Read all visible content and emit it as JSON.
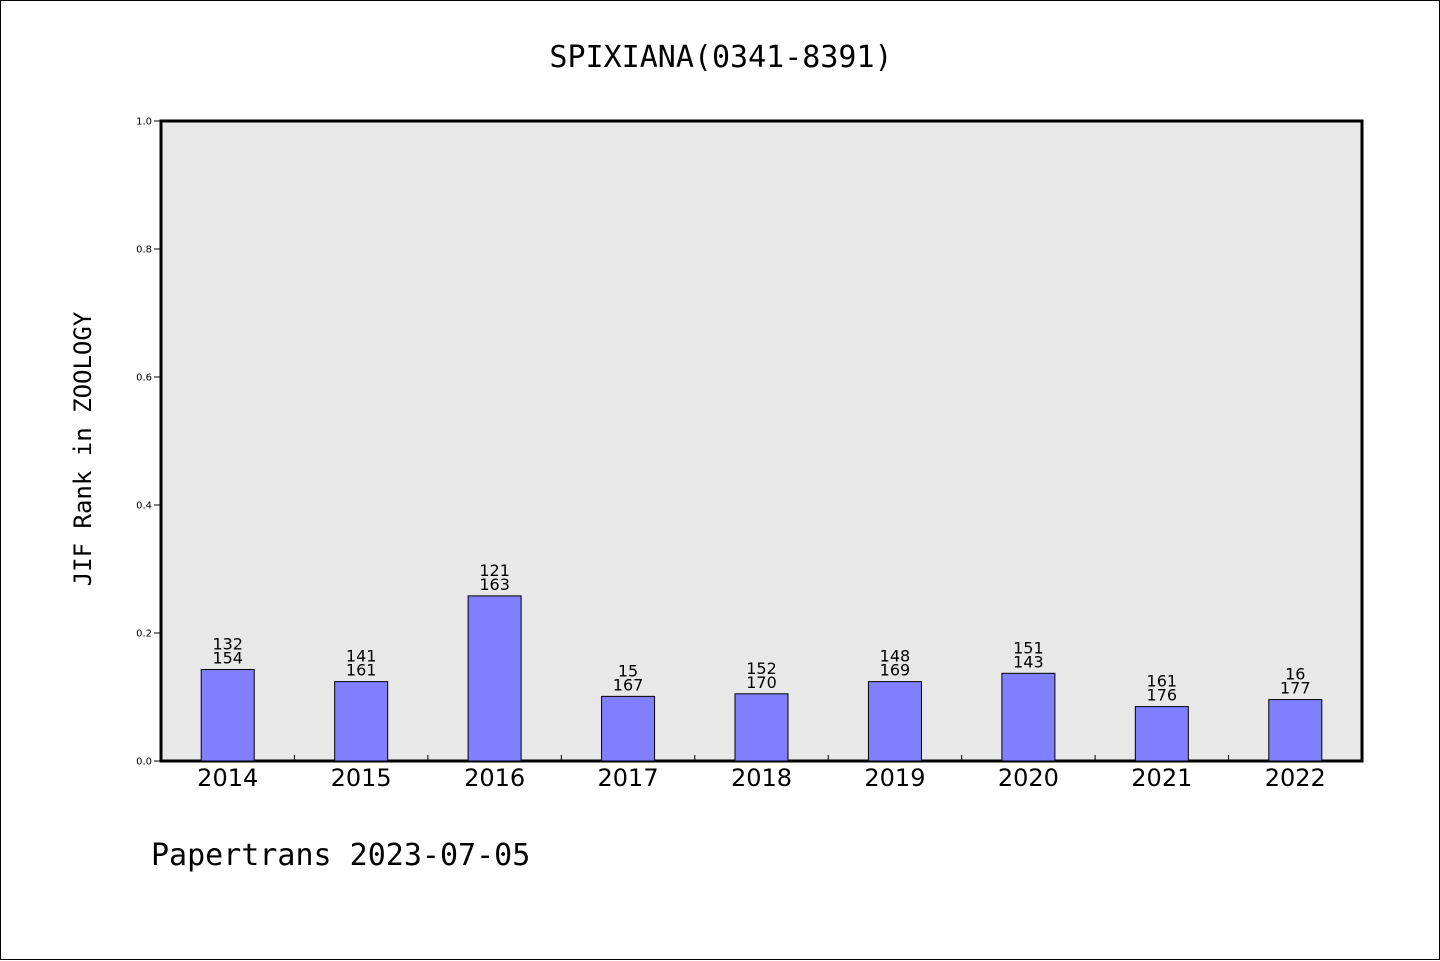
{
  "chart_data": {
    "type": "bar",
    "title": "SPIXIANA(0341-8391)",
    "ylabel": "JIF Rank in ZOOLOGY",
    "xlabel": "",
    "ylim": [
      0,
      1.0
    ],
    "yticks": [
      "0.0",
      "0.2",
      "0.4",
      "0.6",
      "0.8",
      "1.0"
    ],
    "categories": [
      "2014",
      "2015",
      "2016",
      "2017",
      "2018",
      "2019",
      "2020",
      "2021",
      "2022"
    ],
    "values": [
      0.143,
      0.124,
      0.258,
      0.101,
      0.105,
      0.124,
      0.137,
      0.085,
      0.096
    ],
    "labels_top": [
      "132",
      "141",
      "121",
      "15",
      "152",
      "148",
      "151",
      "161",
      "16"
    ],
    "labels_bottom": [
      "154",
      "161",
      "163",
      "167",
      "170",
      "169",
      "143",
      "176",
      "177"
    ],
    "bar_color": "#8080ff",
    "plot_background": "#e8e8e8",
    "grid": false,
    "legend": "none"
  },
  "footer": "Papertrans 2023-07-05"
}
